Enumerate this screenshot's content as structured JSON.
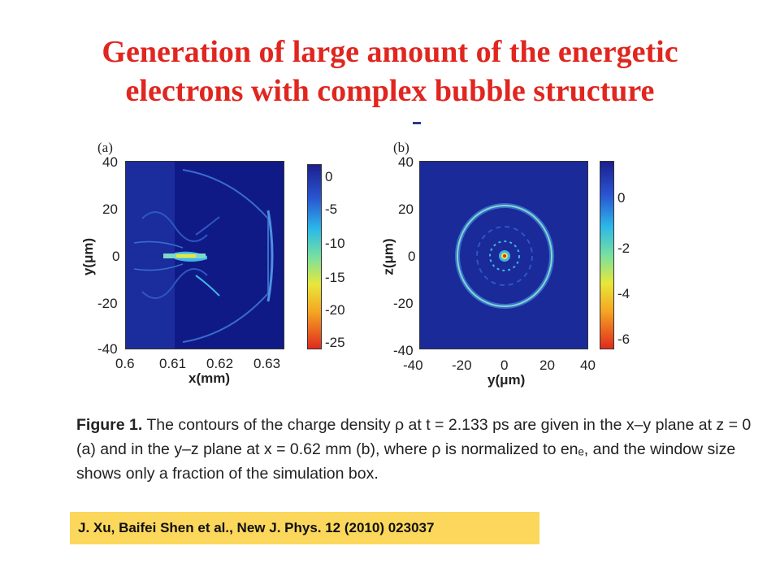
{
  "slide": {
    "title_line1": "Generation of large amount of the energetic",
    "title_line2": "electrons with complex bubble structure",
    "citation": "J. Xu, Baifei Shen et al., New J. Phys. 12 (2010) 023037",
    "colors": {
      "title": "#e0261f",
      "citation_bg": "#fbd75b",
      "plot_bg": "#13218f"
    }
  },
  "figure": {
    "panel_a": {
      "label": "(a)",
      "ylabel": "y(μm)",
      "xlabel": "x(mm)",
      "yticks": [
        "40",
        "20",
        "0",
        "-20",
        "-40"
      ],
      "xticks": [
        "0.6",
        "0.61",
        "0.62",
        "0.63"
      ],
      "cbar_ticks": [
        "0",
        "-5",
        "-10",
        "-15",
        "-20",
        "-25"
      ]
    },
    "panel_b": {
      "label": "(b)",
      "ylabel": "z(μm)",
      "xlabel": "y(μm)",
      "yticks": [
        "40",
        "20",
        "0",
        "-20",
        "-40"
      ],
      "xticks": [
        "-40",
        "-20",
        "0",
        "20",
        "40"
      ],
      "cbar_ticks": [
        "0",
        "-2",
        "-4",
        "-6"
      ]
    },
    "caption": {
      "lead": "Figure 1.",
      "text": " The contours of the charge density ρ at t = 2.133 ps are given in the x–y plane at z = 0 (a) and in the y–z plane at x = 0.62 mm (b), where ρ is normalized to enₑ, and the window size shows only a fraction of the simulation box."
    }
  }
}
